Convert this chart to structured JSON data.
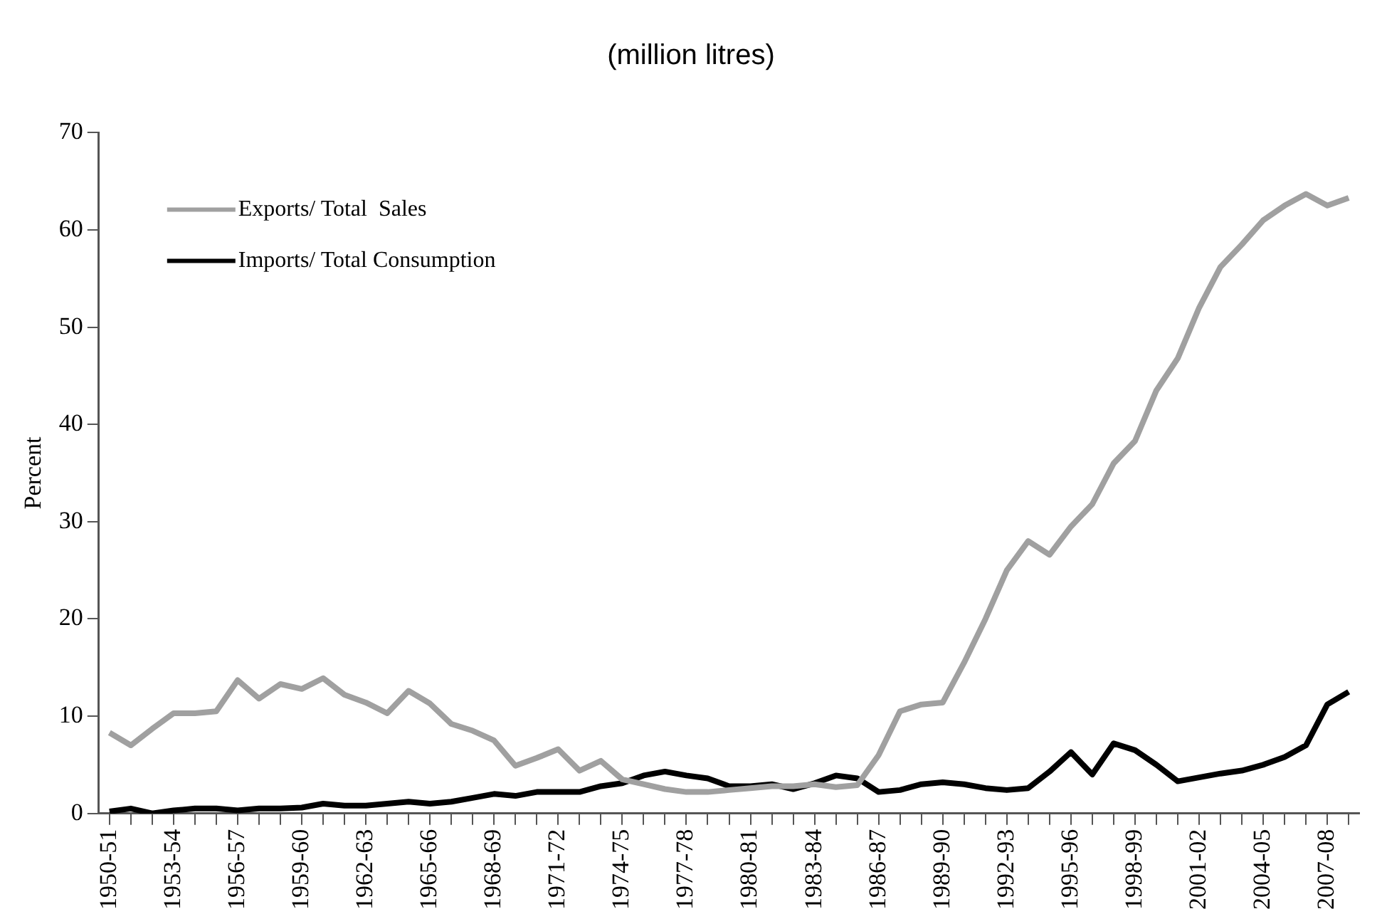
{
  "chart_data": {
    "type": "line",
    "title": "(million litres)",
    "ylabel": "Percent",
    "categories": [
      "1950-51",
      null,
      null,
      "1953-54",
      null,
      null,
      "1956-57",
      null,
      null,
      "1959-60",
      null,
      null,
      "1962-63",
      null,
      null,
      "1965-66",
      null,
      null,
      "1968-69",
      null,
      null,
      "1971-72",
      null,
      null,
      "1974-75",
      null,
      null,
      "1977-78",
      null,
      null,
      "1980-81",
      null,
      null,
      "1983-84",
      null,
      null,
      "1986-87",
      null,
      null,
      "1989-90",
      null,
      null,
      "1992-93",
      null,
      null,
      "1995-96",
      null,
      null,
      "1998-99",
      null,
      null,
      "2001-02",
      null,
      null,
      "2004-05",
      null,
      null,
      "2007-08",
      null
    ],
    "series": [
      {
        "name": "Exports/ Total  Sales",
        "color": "#a0a0a0",
        "values": [
          8.3,
          7.0,
          8.7,
          10.3,
          10.3,
          10.5,
          13.7,
          11.8,
          13.3,
          12.8,
          13.9,
          12.2,
          11.4,
          10.3,
          12.6,
          11.3,
          9.2,
          8.5,
          7.5,
          4.9,
          5.7,
          6.6,
          4.4,
          5.4,
          3.5,
          3.0,
          2.5,
          2.2,
          2.2,
          2.4,
          2.6,
          2.8,
          2.8,
          3.0,
          2.7,
          2.9,
          6.0,
          10.5,
          11.2,
          11.4,
          15.5,
          20.0,
          25.0,
          28.0,
          26.6,
          29.5,
          31.8,
          36.0,
          38.3,
          43.5,
          46.8,
          52.0,
          56.2,
          58.5,
          61.0,
          62.5,
          63.7,
          62.5,
          63.3
        ]
      },
      {
        "name": "Imports/ Total Consumption",
        "color": "#000000",
        "values": [
          0.2,
          0.5,
          0,
          0.3,
          0.5,
          0.5,
          0.3,
          0.5,
          0.5,
          0.6,
          1.0,
          0.8,
          0.8,
          1.0,
          1.2,
          1.0,
          1.2,
          1.6,
          2.0,
          1.8,
          2.2,
          2.2,
          2.2,
          2.8,
          3.1,
          3.9,
          4.3,
          3.9,
          3.6,
          2.8,
          2.8,
          3.0,
          2.5,
          3.1,
          3.9,
          3.6,
          2.2,
          2.4,
          3.0,
          3.2,
          3.0,
          2.6,
          2.4,
          2.6,
          4.3,
          6.3,
          4.0,
          7.2,
          6.5,
          5.0,
          3.3,
          3.7,
          4.1,
          4.4,
          5.0,
          5.8,
          7.0,
          11.2,
          12.5
        ]
      }
    ],
    "ylim": [
      0,
      70
    ],
    "yticks": [
      0,
      10,
      20,
      30,
      40,
      50,
      60,
      70
    ],
    "grid": false,
    "legend": "top left",
    "marker": "none",
    "line_style": "solid"
  }
}
